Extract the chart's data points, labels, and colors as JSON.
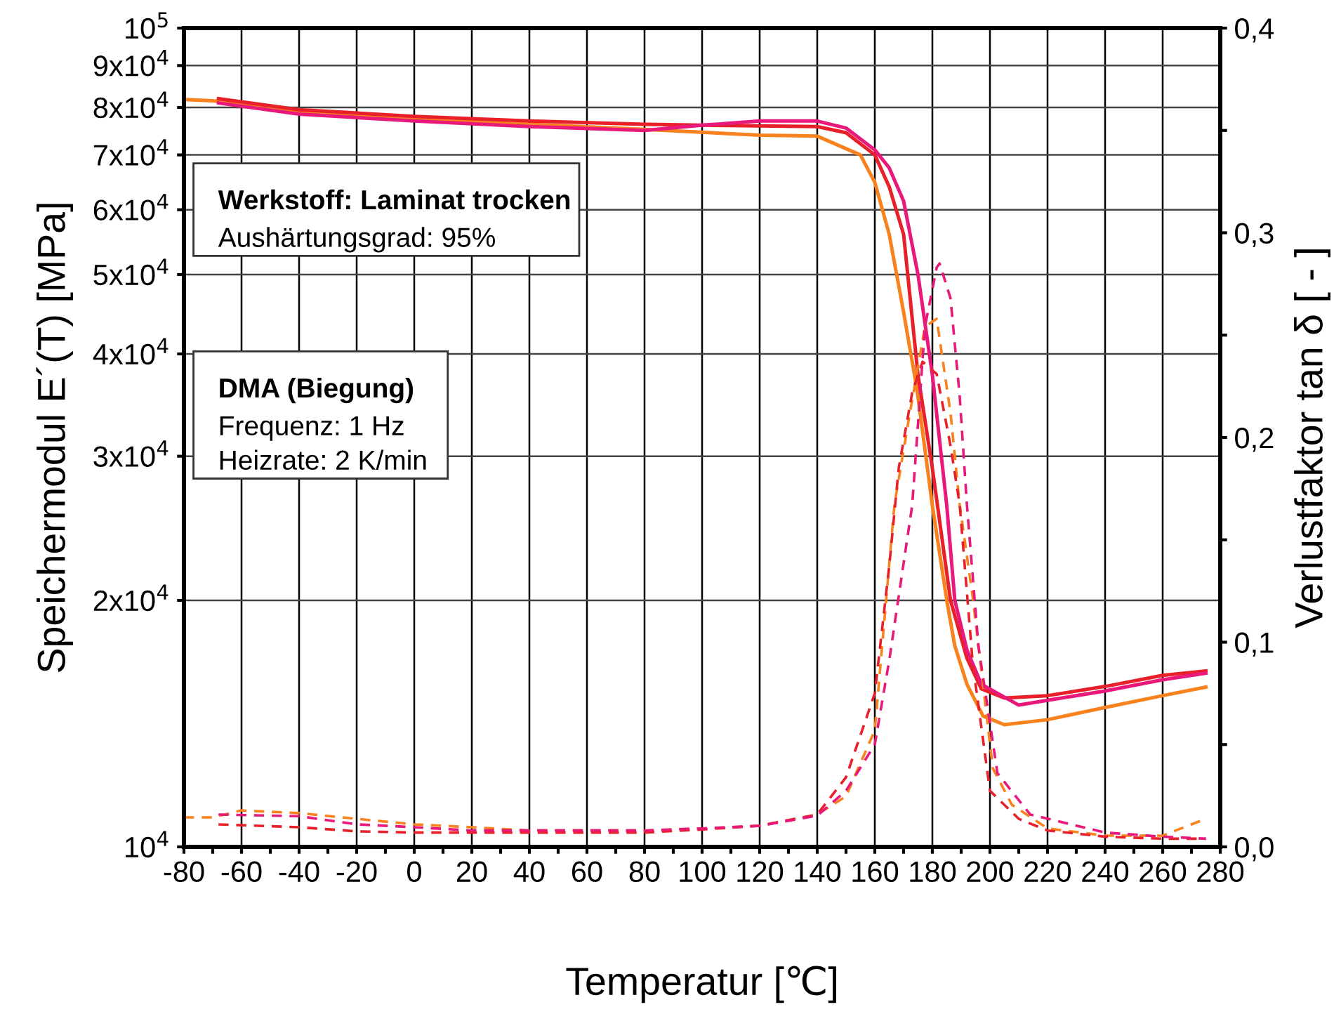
{
  "chart_data": {
    "type": "line",
    "xlabel": "Temperatur [℃]",
    "ylabel": "Speichermodul E´(T) [MPa]",
    "y2label": "Verlustfaktor tan δ [ - ]",
    "annotations": [
      "Werkstoff: Laminat trocken\nAushärtungsgrad: 95%",
      "DMA (Biegung)\nFrequenz: 1 Hz\nHeizrate: 2 K/min"
    ],
    "log": true,
    "grid": true,
    "line_style": "solid",
    "xlim": [
      -80,
      280
    ],
    "xticks": [
      -80,
      {
        "value": -70,
        "label": null
      },
      -60,
      {
        "value": -50,
        "label": null
      },
      -40,
      {
        "value": -30,
        "label": null
      },
      -20,
      {
        "value": -10,
        "label": null
      },
      0,
      {
        "value": 10,
        "label": null
      },
      20,
      {
        "value": 30,
        "label": null
      },
      40,
      {
        "value": 50,
        "label": null
      },
      60,
      {
        "value": 70,
        "label": null
      },
      80,
      {
        "value": 90,
        "label": null
      },
      100,
      {
        "value": 110,
        "label": null
      },
      120,
      {
        "value": 130,
        "label": null
      },
      140,
      {
        "value": 150,
        "label": null
      },
      160,
      {
        "value": 170,
        "label": null
      },
      180,
      {
        "value": 190,
        "label": null
      },
      200,
      {
        "value": 210,
        "label": null
      },
      220,
      {
        "value": 230,
        "label": null
      },
      240,
      {
        "value": 250,
        "label": null
      },
      260,
      {
        "value": 270,
        "label": null
      },
      280
    ],
    "ylim": [
      10000,
      100000
    ],
    "yticks": [
      {
        "value": 10000,
        "label": "10$^{4}$"
      },
      {
        "value": 20000,
        "label": "2x10$^{4}$"
      },
      {
        "value": 30000,
        "label": "3x10$^{4}$"
      },
      {
        "value": 40000,
        "label": "4x10$^{4}$"
      },
      {
        "value": 50000,
        "label": "5x10$^{4}$"
      },
      {
        "value": 60000,
        "label": "6x10$^{4}$"
      },
      {
        "value": 70000,
        "label": "7x10$^{4}$"
      },
      {
        "value": 80000,
        "label": "8x10$^{4}$"
      },
      {
        "value": 90000,
        "label": "9x10$^{4}$"
      },
      {
        "value": 100000,
        "label": "10$^{5}$"
      }
    ],
    "y2lim": [
      0,
      0.4
    ],
    "y2ticks": [
      {
        "value": 0,
        "label": "0,0"
      },
      {
        "value": 0.05,
        "label": null
      },
      {
        "value": 0.1,
        "label": "0,1"
      },
      {
        "value": 0.15,
        "label": null
      },
      {
        "value": 0.2,
        "label": "0,2"
      },
      {
        "value": 0.25,
        "label": null
      },
      {
        "value": 0.3,
        "label": "0,3"
      },
      {
        "value": 0.35,
        "label": null
      },
      {
        "value": 0.4,
        "label": "0,4"
      }
    ],
    "series": [
      {
        "color": "#f7821e",
        "x": [
          -80,
          -70,
          -40,
          0,
          40,
          80,
          120,
          140,
          155,
          160,
          165,
          170,
          174.6,
          180,
          181.5,
          185,
          187.8,
          192,
          197.6,
          205,
          220,
          240,
          260,
          275
        ],
        "values": [
          81800,
          81500,
          79000,
          77500,
          76300,
          75200,
          74000,
          73800,
          70000,
          64800,
          56000,
          45000,
          36300,
          26100,
          24100,
          20000,
          17600,
          15800,
          14450,
          14100,
          14300,
          14800,
          15300,
          15670
        ]
      },
      {
        "color": "#e8202a",
        "x": [
          -68,
          -40,
          0,
          40,
          80,
          100,
          140,
          150,
          160,
          165,
          170,
          175,
          180,
          186.3,
          192,
          197,
          205,
          220,
          240,
          260,
          275
        ],
        "values": [
          82000,
          79500,
          78000,
          77000,
          76300,
          76100,
          75800,
          74500,
          70000,
          64000,
          56000,
          37700,
          29000,
          20000,
          17000,
          15600,
          15200,
          15300,
          15700,
          16200,
          16400
        ]
      },
      {
        "color": "#e8197a",
        "x": [
          -68,
          -40,
          0,
          40,
          80,
          100,
          120,
          140,
          150,
          160,
          165,
          170,
          175,
          180,
          185,
          187.8,
          192,
          197,
          210,
          220,
          240,
          260,
          275
        ],
        "values": [
          81000,
          78500,
          77000,
          75800,
          75000,
          76100,
          77000,
          77000,
          75500,
          71000,
          67500,
          61500,
          50000,
          37700,
          26100,
          20000,
          17400,
          15800,
          14900,
          15100,
          15500,
          16000,
          16300
        ]
      },
      {
        "color": "#f7821e",
        "axis": "y2",
        "line_style": "dashed",
        "x": [
          -80,
          -70,
          -60,
          -40,
          -20,
          0,
          20,
          40,
          60,
          80,
          100,
          120,
          140,
          150,
          160,
          166.8,
          171.7,
          177.4,
          181.5,
          186.3,
          189.5,
          194.1,
          201,
          207.6,
          220,
          240,
          260,
          275
        ],
        "values": [
          0.0144,
          0.0144,
          0.0178,
          0.0165,
          0.0137,
          0.011,
          0.0096,
          0.008,
          0.008,
          0.008,
          0.009,
          0.0103,
          0.0158,
          0.0247,
          0.057,
          0.167,
          0.208,
          0.254,
          0.258,
          0.212,
          0.167,
          0.121,
          0.0384,
          0.0206,
          0.009,
          0.0055,
          0.0055,
          0.0137
        ]
      },
      {
        "color": "#e8202a",
        "axis": "y2",
        "line_style": "dashed",
        "x": [
          -68,
          -40,
          -20,
          0,
          40,
          80,
          100,
          120,
          140,
          150,
          160,
          165,
          168.3,
          173,
          176.6,
          181.5,
          186.3,
          189.5,
          194,
          200,
          210,
          220,
          240,
          260,
          275
        ],
        "values": [
          0.011,
          0.0096,
          0.0076,
          0.007,
          0.007,
          0.007,
          0.0085,
          0.0103,
          0.0158,
          0.034,
          0.075,
          0.137,
          0.185,
          0.222,
          0.237,
          0.231,
          0.196,
          0.167,
          0.09,
          0.0274,
          0.0137,
          0.008,
          0.005,
          0.004,
          0.004
        ]
      },
      {
        "color": "#e8197a",
        "axis": "y2",
        "line_style": "dashed",
        "x": [
          -68,
          -40,
          -20,
          0,
          20,
          40,
          80,
          100,
          120,
          140,
          150,
          160,
          165,
          173,
          177.4,
          181.5,
          182.5,
          186.3,
          189.5,
          192,
          196,
          202.6,
          214,
          240,
          260,
          275
        ],
        "values": [
          0.0158,
          0.015,
          0.011,
          0.0096,
          0.008,
          0.008,
          0.008,
          0.009,
          0.0103,
          0.0152,
          0.0274,
          0.05,
          0.091,
          0.167,
          0.254,
          0.283,
          0.285,
          0.268,
          0.22,
          0.167,
          0.098,
          0.036,
          0.0158,
          0.007,
          0.005,
          0.004
        ]
      }
    ]
  }
}
